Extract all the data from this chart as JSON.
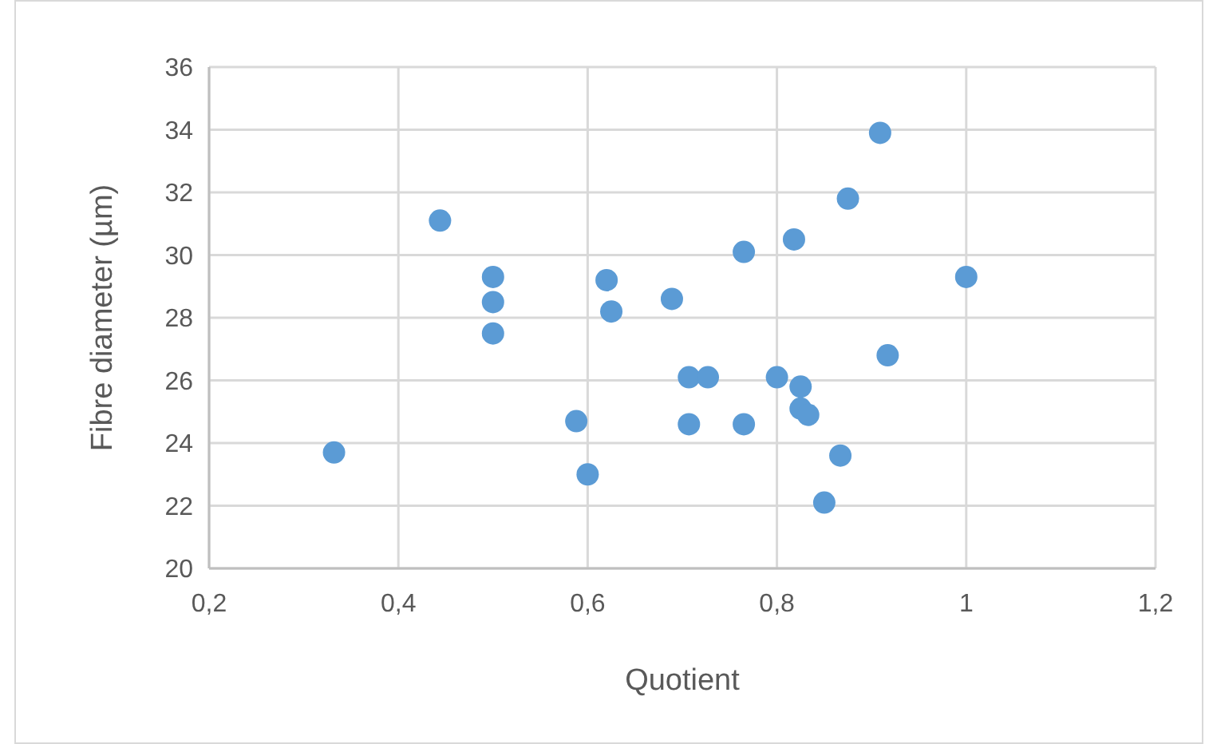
{
  "chart_data": {
    "type": "scatter",
    "xlabel": "Quotient",
    "ylabel": "Fibre diameter (µm)",
    "x": [
      0.332,
      0.444,
      0.5,
      0.5,
      0.5,
      0.62,
      0.625,
      0.689,
      0.707,
      0.707,
      0.588,
      0.6,
      0.909,
      0.875,
      0.818,
      0.765,
      1.0,
      0.917,
      0.727,
      0.8,
      0.825,
      0.825,
      0.833,
      0.765,
      0.867,
      0.85
    ],
    "series": [
      {
        "color": "#5b9bd5",
        "values": [
          23.7,
          31.1,
          29.3,
          28.5,
          27.5,
          29.2,
          28.2,
          28.6,
          26.1,
          24.6,
          24.7,
          23.0,
          33.9,
          31.8,
          30.5,
          30.1,
          29.3,
          26.8,
          26.1,
          26.1,
          25.8,
          25.1,
          24.9,
          24.6,
          23.6,
          22.1
        ]
      }
    ],
    "xlim": [
      0.2,
      1.2
    ],
    "xticks": [
      {
        "value": 0.2,
        "label": "0,2"
      },
      {
        "value": 0.4,
        "label": "0,4"
      },
      {
        "value": 0.6,
        "label": "0,6"
      },
      {
        "value": 0.8,
        "label": "0,8"
      },
      1,
      {
        "value": 1.2,
        "label": "1,2"
      }
    ],
    "ylim": [
      20,
      36
    ],
    "yticks": [
      20,
      22,
      24,
      26,
      28,
      30,
      32,
      34,
      36
    ],
    "grid": true,
    "marker": "circle"
  }
}
